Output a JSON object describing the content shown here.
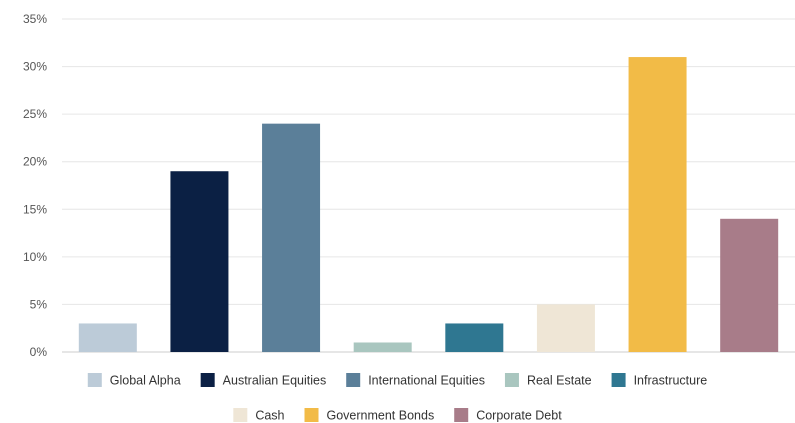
{
  "chart_data": {
    "type": "bar",
    "title": "",
    "xlabel": "",
    "ylabel": "",
    "ylim": [
      0,
      35
    ],
    "y_ticks": [
      "0%",
      "5%",
      "10%",
      "15%",
      "20%",
      "25%",
      "30%",
      "35%"
    ],
    "y_tick_values": [
      0,
      5,
      10,
      15,
      20,
      25,
      30,
      35
    ],
    "grid": true,
    "legend_position": "bottom",
    "series": [
      {
        "name": "Global Alpha",
        "value": 3,
        "color": "#bccbd8"
      },
      {
        "name": "Australian Equities",
        "value": 19,
        "color": "#0b2044"
      },
      {
        "name": "International Equities",
        "value": 24,
        "color": "#5b7f99"
      },
      {
        "name": "Real Estate",
        "value": 1,
        "color": "#a9c6bf"
      },
      {
        "name": "Infrastructure",
        "value": 3,
        "color": "#2f7791"
      },
      {
        "name": "Cash",
        "value": 5,
        "color": "#efe6d6"
      },
      {
        "name": "Government Bonds",
        "value": 31,
        "color": "#f2bb47"
      },
      {
        "name": "Corporate Debt",
        "value": 14,
        "color": "#a87c89"
      }
    ]
  }
}
